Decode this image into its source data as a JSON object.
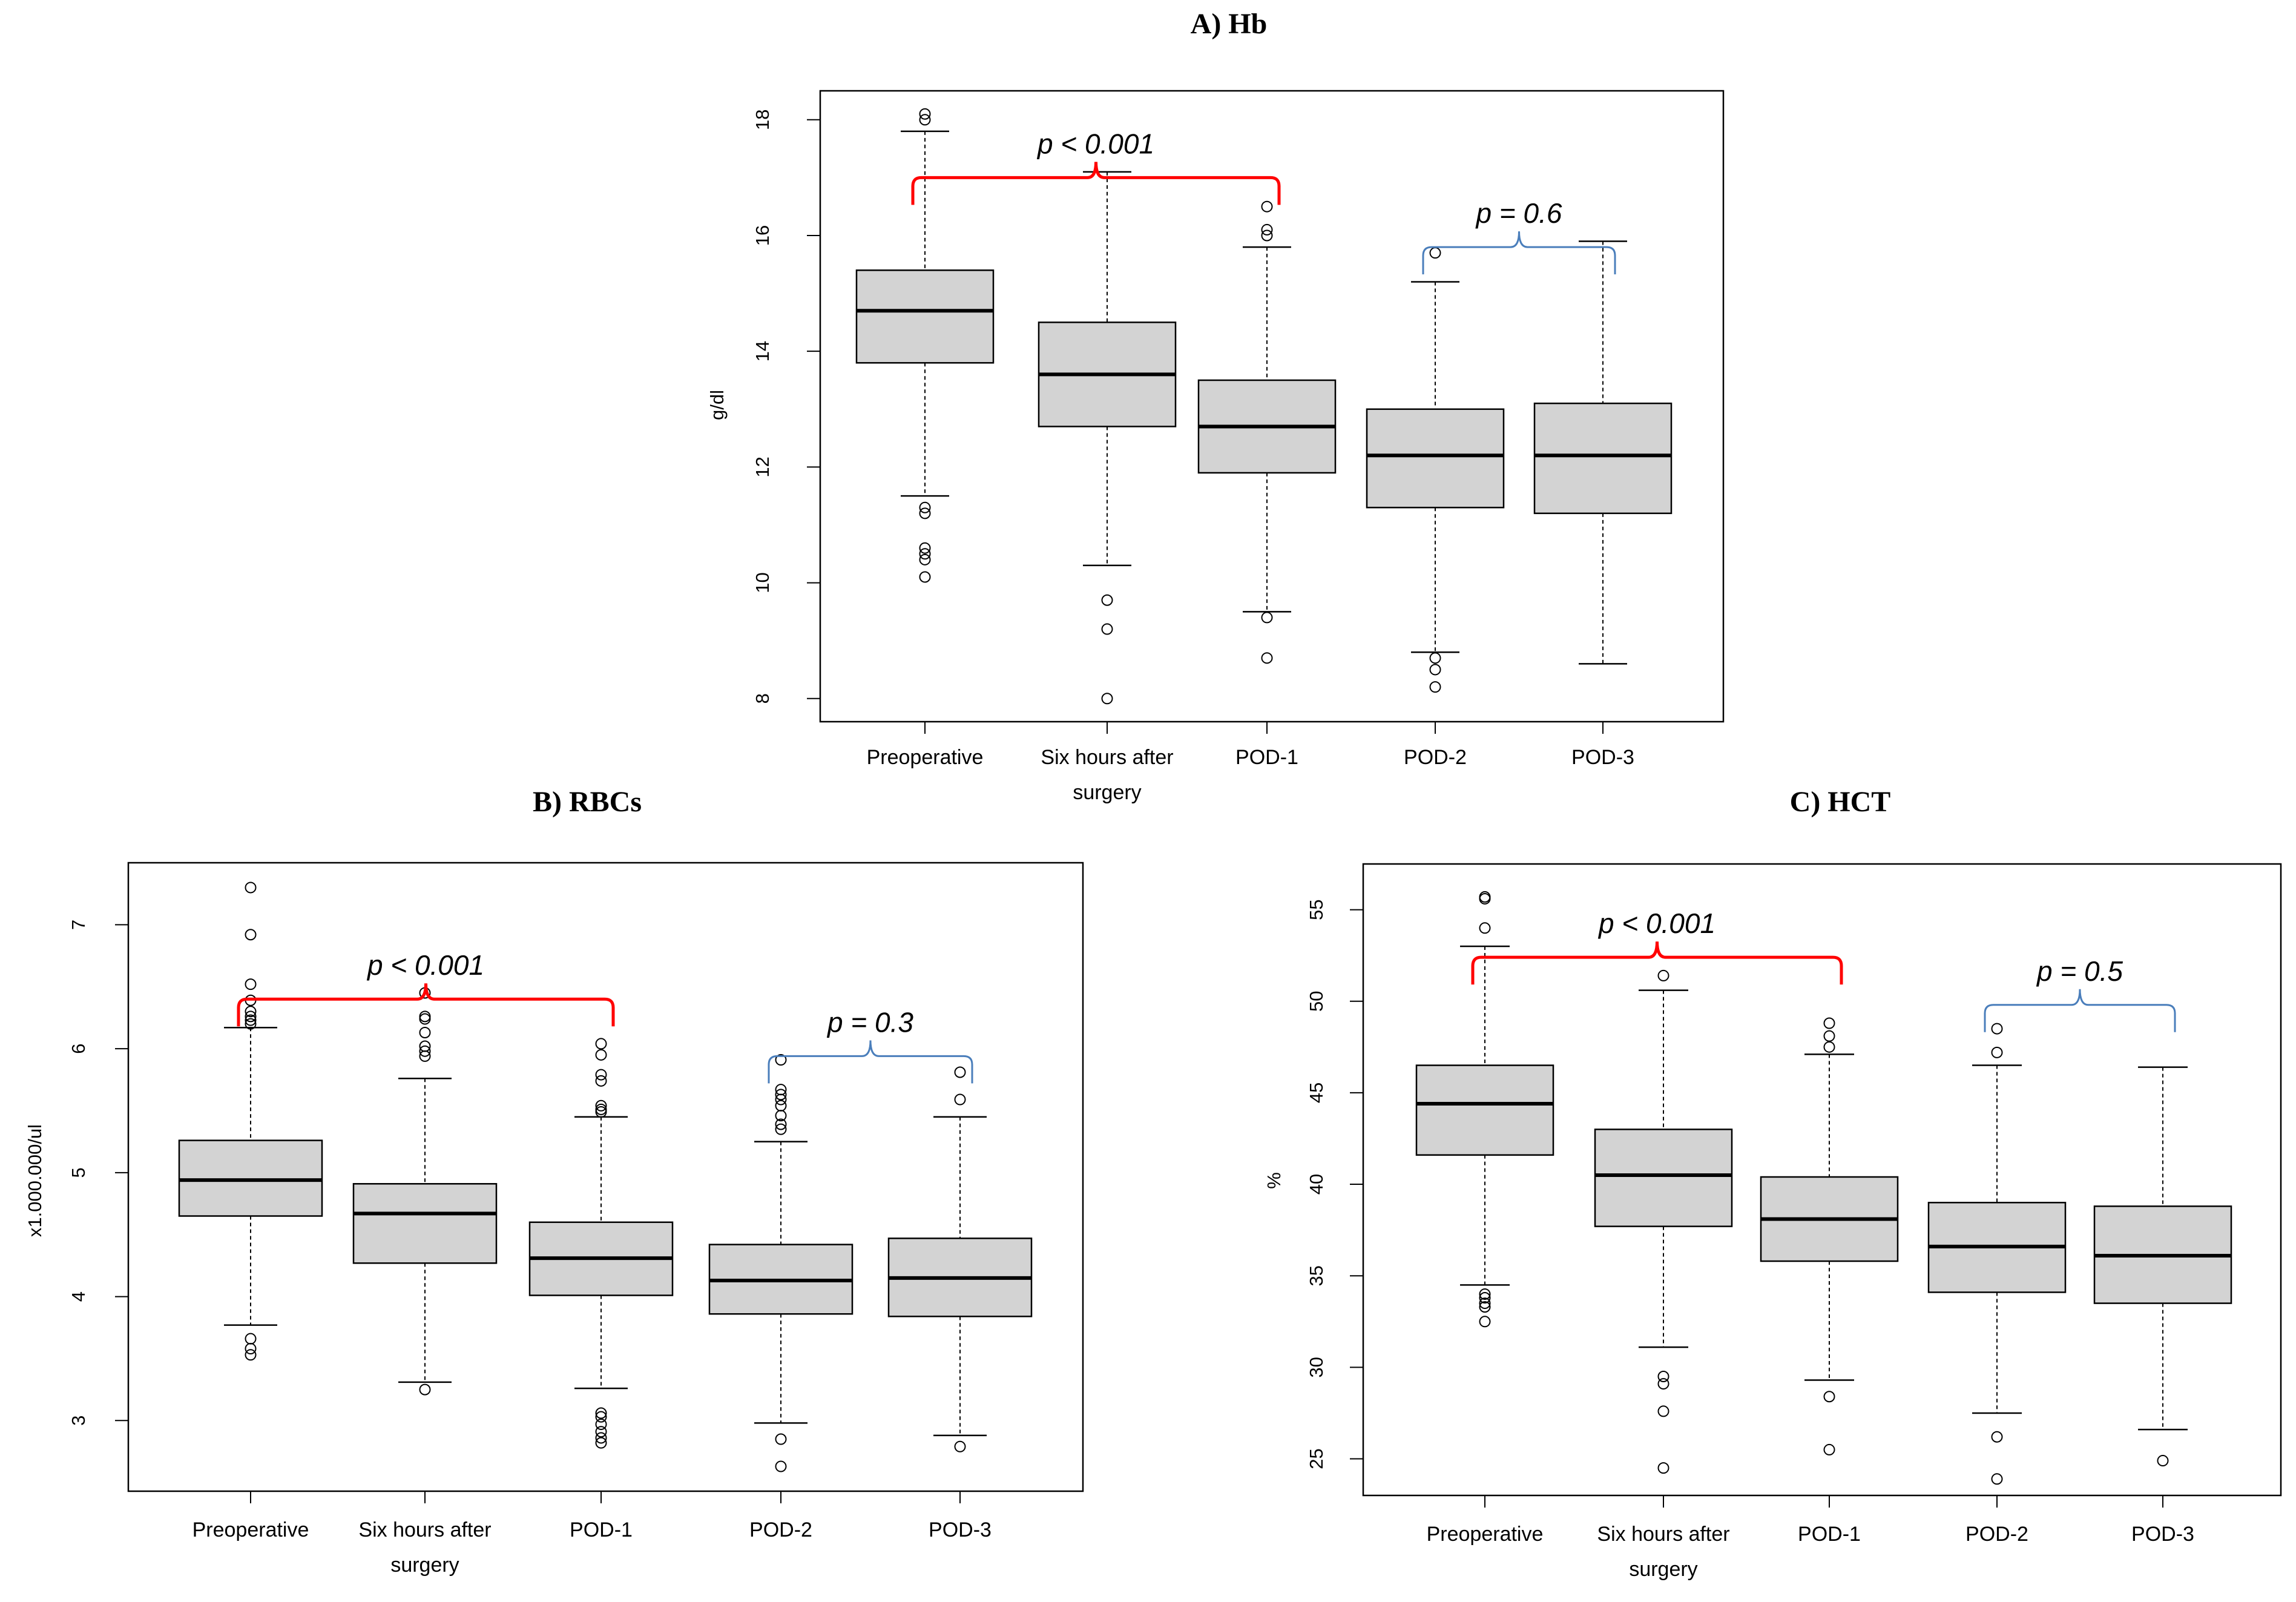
{
  "chart_data": [
    {
      "type": "boxplot",
      "title": "A) Hb",
      "ylabel": "g/dl",
      "xlabel": "",
      "ylim": [
        7.6,
        18.5
      ],
      "yticks": [
        8,
        10,
        12,
        14,
        16,
        18
      ],
      "categories": [
        "Preoperative",
        "Six hours after surgery",
        "POD-1",
        "POD-2",
        "POD-3"
      ],
      "category_lines": [
        [
          "Preoperative"
        ],
        [
          "Six hours after",
          "surgery"
        ],
        [
          "POD-1"
        ],
        [
          "POD-2"
        ],
        [
          "POD-3"
        ]
      ],
      "boxes": [
        {
          "whisker_low": 11.5,
          "q1": 13.8,
          "median": 14.7,
          "q3": 15.4,
          "whisker_high": 17.8,
          "outliers": [
            18.1,
            18.0,
            11.3,
            11.2,
            10.6,
            10.5,
            10.4,
            10.1
          ]
        },
        {
          "whisker_low": 10.3,
          "q1": 12.7,
          "median": 13.6,
          "q3": 14.5,
          "whisker_high": 17.1,
          "outliers": [
            9.7,
            9.2,
            8.0
          ]
        },
        {
          "whisker_low": 9.5,
          "q1": 11.9,
          "median": 12.7,
          "q3": 13.5,
          "whisker_high": 15.8,
          "outliers": [
            16.5,
            16.1,
            16.0,
            9.4,
            8.7
          ]
        },
        {
          "whisker_low": 8.8,
          "q1": 11.3,
          "median": 12.2,
          "q3": 13.0,
          "whisker_high": 15.2,
          "outliers": [
            15.7,
            8.7,
            8.5,
            8.2
          ]
        },
        {
          "whisker_low": 8.6,
          "q1": 11.2,
          "median": 12.2,
          "q3": 13.1,
          "whisker_high": 15.9,
          "outliers": []
        }
      ],
      "annotations": [
        {
          "text": "p < 0.001",
          "from": 0,
          "to": 2,
          "color": "#ff0000",
          "level": 17.0
        },
        {
          "text": "p = 0.6",
          "from": 3,
          "to": 4,
          "color": "#4a7ebb",
          "level": 15.8
        }
      ]
    },
    {
      "type": "boxplot",
      "title": "B) RBCs",
      "ylabel": "x1.000.000/ul",
      "xlabel": "",
      "ylim": [
        2.43,
        7.5
      ],
      "yticks": [
        3,
        4,
        5,
        6,
        7
      ],
      "categories": [
        "Preoperative",
        "Six hours after surgery",
        "POD-1",
        "POD-2",
        "POD-3"
      ],
      "category_lines": [
        [
          "Preoperative"
        ],
        [
          "Six hours after",
          "surgery"
        ],
        [
          "POD-1"
        ],
        [
          "POD-2"
        ],
        [
          "POD-3"
        ]
      ],
      "boxes": [
        {
          "whisker_low": 3.77,
          "q1": 4.65,
          "median": 4.94,
          "q3": 5.26,
          "whisker_high": 6.17,
          "outliers": [
            7.3,
            6.92,
            6.52,
            6.39,
            6.3,
            6.26,
            6.23,
            6.2,
            3.66,
            3.58,
            3.53
          ]
        },
        {
          "whisker_low": 3.31,
          "q1": 4.27,
          "median": 4.67,
          "q3": 4.91,
          "whisker_high": 5.76,
          "outliers": [
            6.45,
            6.26,
            6.24,
            6.13,
            6.02,
            5.98,
            5.94,
            3.25
          ]
        },
        {
          "whisker_low": 3.26,
          "q1": 4.01,
          "median": 4.31,
          "q3": 4.6,
          "whisker_high": 5.45,
          "outliers": [
            6.04,
            5.95,
            5.79,
            5.74,
            5.54,
            5.51,
            5.49,
            3.06,
            3.03,
            2.97,
            2.91,
            2.86,
            2.82
          ]
        },
        {
          "whisker_low": 2.98,
          "q1": 3.86,
          "median": 4.13,
          "q3": 4.42,
          "whisker_high": 5.25,
          "outliers": [
            5.91,
            5.67,
            5.63,
            5.59,
            5.54,
            5.46,
            5.39,
            5.35,
            2.85,
            2.63
          ]
        },
        {
          "whisker_low": 2.88,
          "q1": 3.84,
          "median": 4.15,
          "q3": 4.47,
          "whisker_high": 5.45,
          "outliers": [
            5.81,
            5.59,
            2.79
          ]
        }
      ],
      "annotations": [
        {
          "text": "p < 0.001",
          "from": 0,
          "to": 2,
          "color": "#ff0000",
          "level": 6.4
        },
        {
          "text": "p = 0.3",
          "from": 3,
          "to": 4,
          "color": "#4a7ebb",
          "level": 5.94
        }
      ]
    },
    {
      "type": "boxplot",
      "title": "C) HCT",
      "ylabel": "%",
      "xlabel": "",
      "ylim": [
        23,
        57.5
      ],
      "yticks": [
        25,
        30,
        35,
        40,
        45,
        50,
        55
      ],
      "categories": [
        "Preoperative",
        "Six hours after surgery",
        "POD-1",
        "POD-2",
        "POD-3"
      ],
      "category_lines": [
        [
          "Preoperative"
        ],
        [
          "Six hours after",
          "surgery"
        ],
        [
          "POD-1"
        ],
        [
          "POD-2"
        ],
        [
          "POD-3"
        ]
      ],
      "boxes": [
        {
          "whisker_low": 34.5,
          "q1": 41.6,
          "median": 44.4,
          "q3": 46.5,
          "whisker_high": 53.0,
          "outliers": [
            55.7,
            55.6,
            54.0,
            34.0,
            33.8,
            33.5,
            33.3,
            32.5
          ]
        },
        {
          "whisker_low": 31.1,
          "q1": 37.7,
          "median": 40.5,
          "q3": 43.0,
          "whisker_high": 50.6,
          "outliers": [
            51.4,
            29.5,
            29.1,
            27.6,
            24.5
          ]
        },
        {
          "whisker_low": 29.3,
          "q1": 35.8,
          "median": 38.1,
          "q3": 40.4,
          "whisker_high": 47.1,
          "outliers": [
            48.8,
            48.1,
            47.5,
            28.4,
            25.5
          ]
        },
        {
          "whisker_low": 27.5,
          "q1": 34.1,
          "median": 36.6,
          "q3": 39.0,
          "whisker_high": 46.5,
          "outliers": [
            48.5,
            47.2,
            26.2,
            23.9
          ]
        },
        {
          "whisker_low": 26.6,
          "q1": 33.5,
          "median": 36.1,
          "q3": 38.8,
          "whisker_high": 46.4,
          "outliers": [
            24.9
          ]
        }
      ],
      "annotations": [
        {
          "text": "p < 0.001",
          "from": 0,
          "to": 2,
          "color": "#ff0000",
          "level": 52.4
        },
        {
          "text": "p = 0.5",
          "from": 3,
          "to": 4,
          "color": "#4a7ebb",
          "level": 49.8
        }
      ]
    }
  ],
  "style": {
    "box_fill": "#d3d3d3",
    "stroke": "#000000"
  }
}
